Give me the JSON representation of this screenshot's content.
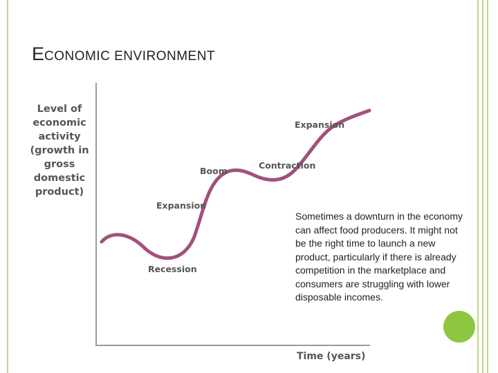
{
  "slide": {
    "title_first_letter": "E",
    "title_rest": "CONOMIC ENVIRONMENT"
  },
  "diagram": {
    "y_axis_label_lines": [
      "Level of",
      "economic",
      "activity",
      "(growth in",
      "gross",
      "domestic",
      "product)"
    ],
    "x_axis_label": "Time (years)",
    "phases": {
      "recession": "Recession",
      "expansion_first": "Expansion",
      "boom": "Boom",
      "contraction": "Contraction",
      "expansion_second": "Expansion"
    },
    "curve_color": "#a0527a",
    "axis_color": "#9a9a9a"
  },
  "note": {
    "text": "Sometimes a downturn in the economy can affect food producers. It might not be the right time to launch a new product, particularly if there is already competition in the marketplace and consumers are struggling with lower disposable incomes."
  },
  "theme": {
    "frame_color": "#b9d98a",
    "accent_circle_color": "#8dc63f"
  }
}
